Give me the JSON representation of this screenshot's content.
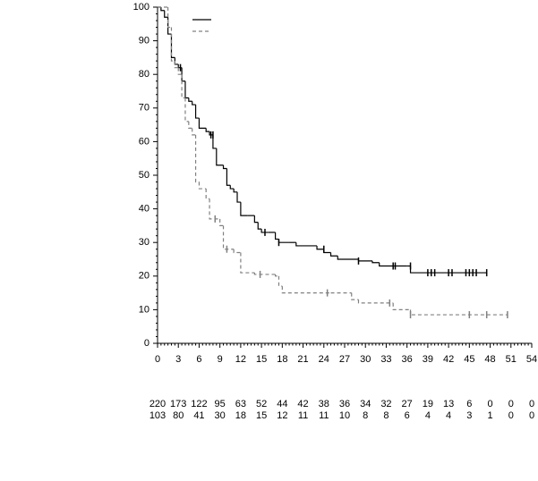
{
  "chart_data": {
    "type": "step",
    "xlim": [
      0,
      54
    ],
    "xticks": [
      0,
      3,
      6,
      9,
      12,
      15,
      18,
      21,
      24,
      27,
      30,
      33,
      36,
      39,
      42,
      45,
      48,
      51,
      54
    ],
    "ylim": [
      0,
      100
    ],
    "yticks": [
      0,
      10,
      20,
      30,
      40,
      50,
      60,
      70,
      80,
      90,
      100
    ],
    "minor_ticks": true,
    "legend": "top-left",
    "series": [
      {
        "color": "#000000",
        "dash": "solid",
        "x": [
          0,
          0.5,
          1,
          1.5,
          2,
          2.5,
          3,
          3.5,
          4,
          4.5,
          5,
          5.5,
          6,
          7,
          7.5,
          8,
          8.5,
          9.5,
          10,
          10.5,
          11,
          11.5,
          12,
          13,
          14,
          14.5,
          15,
          16,
          17,
          17.5,
          19,
          20,
          23,
          24,
          25,
          26,
          29,
          31,
          32,
          36,
          36.5,
          47.5
        ],
        "values": [
          100,
          99,
          97,
          92,
          85,
          83,
          82,
          78,
          73,
          72,
          71,
          67,
          64,
          63,
          62,
          58,
          53,
          52,
          47,
          46,
          45,
          42,
          38,
          38,
          36,
          34,
          33,
          33,
          31,
          30,
          30,
          29,
          28,
          27,
          26,
          25,
          24.5,
          24,
          23,
          23,
          21,
          21
        ],
        "censor_x": [
          3.3,
          7.7,
          8,
          15.5,
          17.5,
          24,
          29,
          34,
          34.3,
          36.5,
          39,
          39.5,
          40,
          42,
          42.5,
          44.5,
          45,
          45.5,
          46,
          47.5
        ],
        "censor_y": [
          82,
          62,
          62,
          33,
          30,
          28,
          24.5,
          23,
          23,
          23,
          21,
          21,
          21,
          21,
          21,
          21,
          21,
          21,
          21,
          21
        ],
        "at_risk": [
          220,
          173,
          122,
          95,
          63,
          52,
          44,
          42,
          38,
          36,
          34,
          32,
          27,
          19,
          13,
          6,
          0,
          0,
          0
        ]
      },
      {
        "color": "#808080",
        "dash": "dashed",
        "x": [
          0,
          1.5,
          2,
          2.5,
          3,
          3.5,
          4,
          4.5,
          5,
          5.5,
          6,
          7,
          7.5,
          9,
          9.5,
          11,
          12,
          14,
          17,
          17.5,
          18,
          25,
          28,
          29,
          33,
          34,
          36.5,
          50.5
        ],
        "values": [
          100,
          94,
          84,
          82,
          80,
          73,
          66,
          64,
          62,
          48,
          46,
          43,
          37,
          35,
          28,
          27,
          21,
          20.5,
          20,
          17,
          15,
          15,
          13,
          12,
          12,
          10,
          8.5,
          8.5
        ],
        "censor_x": [
          8.3,
          10,
          14.8,
          24.5,
          33.5,
          36.5,
          45,
          47.5,
          50.5
        ],
        "censor_y": [
          37,
          28,
          20.5,
          15,
          12,
          8.5,
          8.5,
          8.5,
          8.5
        ],
        "at_risk": [
          103,
          80,
          41,
          30,
          18,
          15,
          12,
          11,
          11,
          10,
          8,
          8,
          6,
          4,
          4,
          3,
          1,
          0,
          0
        ]
      }
    ]
  }
}
